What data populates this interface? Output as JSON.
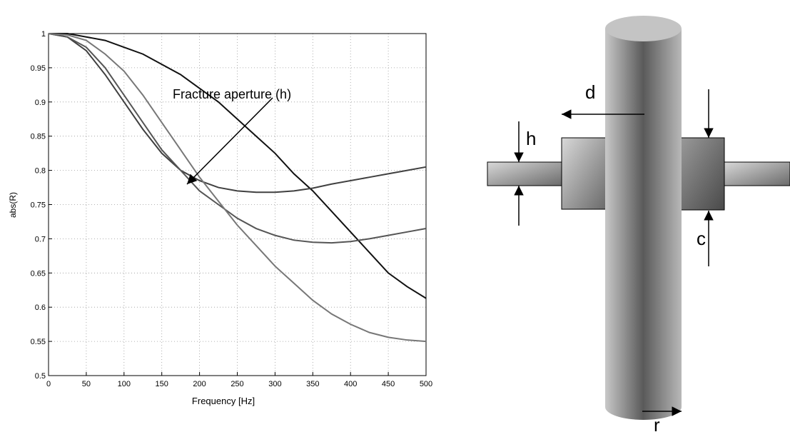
{
  "chart_data": {
    "type": "line",
    "x_label": "Frequency [Hz]",
    "y_label": "abs(R)",
    "annotation": "Fracture aperture (h)",
    "x": [
      0,
      25,
      50,
      75,
      100,
      125,
      150,
      175,
      200,
      225,
      250,
      275,
      300,
      325,
      350,
      375,
      400,
      425,
      450,
      475,
      500
    ],
    "series": [
      {
        "color": "#111111",
        "values": [
          1,
          1.0,
          0.995,
          0.99,
          0.98,
          0.97,
          0.955,
          0.94,
          0.92,
          0.9,
          0.875,
          0.85,
          0.825,
          0.795,
          0.77,
          0.74,
          0.71,
          0.68,
          0.65,
          0.63,
          0.613
        ]
      },
      {
        "color": "#404040",
        "values": [
          1,
          0.995,
          0.975,
          0.94,
          0.9,
          0.86,
          0.825,
          0.8,
          0.785,
          0.775,
          0.77,
          0.768,
          0.768,
          0.77,
          0.774,
          0.78,
          0.785,
          0.79,
          0.795,
          0.8,
          0.805
        ]
      },
      {
        "color": "#555555",
        "values": [
          1,
          0.995,
          0.98,
          0.95,
          0.91,
          0.87,
          0.83,
          0.8,
          0.77,
          0.75,
          0.73,
          0.715,
          0.705,
          0.698,
          0.695,
          0.694,
          0.696,
          0.7,
          0.705,
          0.71,
          0.715
        ]
      },
      {
        "color": "#777777",
        "values": [
          1,
          0.998,
          0.99,
          0.97,
          0.945,
          0.91,
          0.87,
          0.83,
          0.79,
          0.755,
          0.72,
          0.69,
          0.66,
          0.635,
          0.61,
          0.59,
          0.575,
          0.563,
          0.556,
          0.552,
          0.55
        ]
      }
    ],
    "xlim": [
      0,
      500
    ],
    "xticks": [
      0,
      50,
      100,
      150,
      200,
      250,
      300,
      350,
      400,
      450,
      500
    ],
    "ylim": [
      0.5,
      1
    ],
    "yticks": [
      0.5,
      0.55,
      0.6,
      0.65,
      0.7,
      0.75,
      0.8,
      0.85,
      0.9,
      0.95,
      1
    ],
    "grid": true
  },
  "diagram": {
    "labels": [
      "d",
      "h",
      "c",
      "r"
    ]
  }
}
